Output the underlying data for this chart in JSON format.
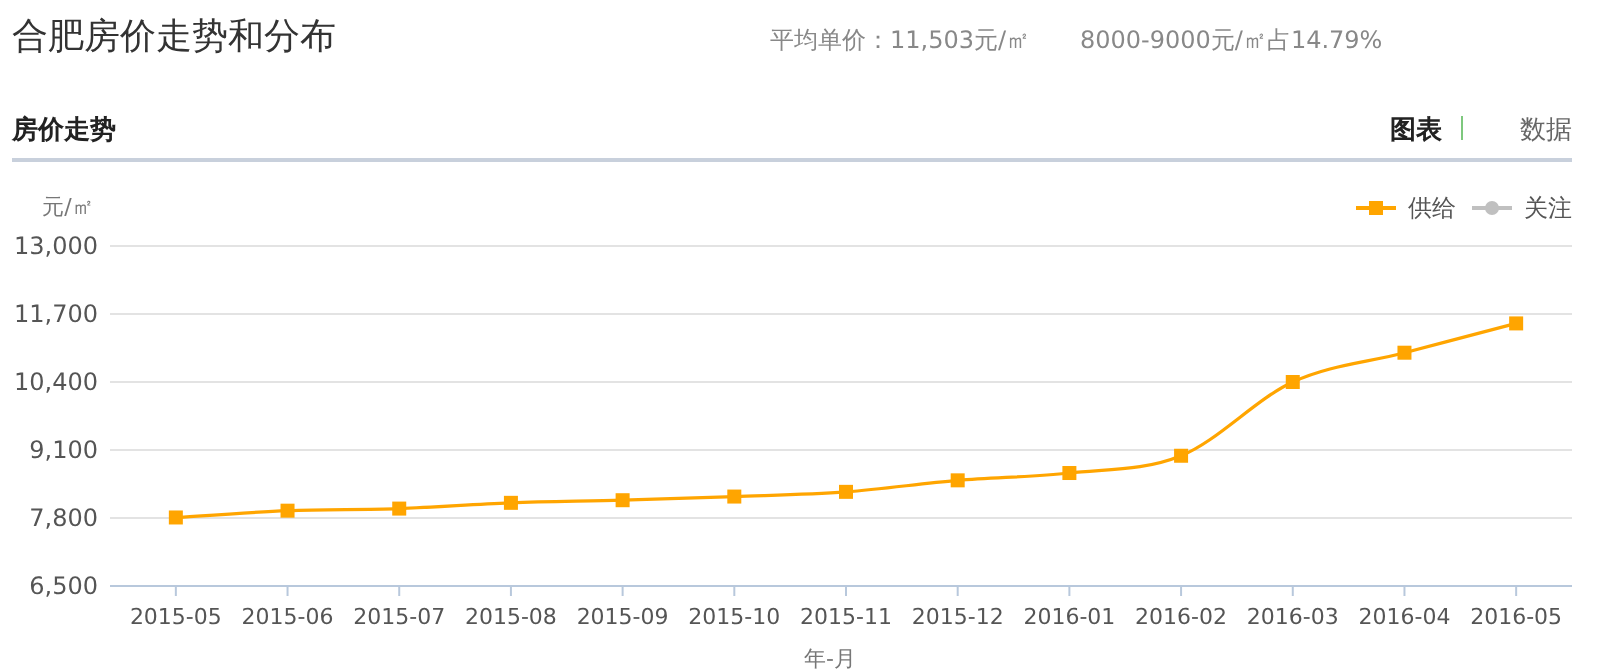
{
  "chart_data": {
    "type": "line",
    "title": "合肥房价走势和分布",
    "subtitle": "房价走势",
    "annotations": [
      "平均单价：11,503元/㎡",
      "8000-9000元/㎡占14.79%",
      "图表",
      "数据"
    ],
    "ylabel": "元/㎡",
    "xlabel": "年-月",
    "categories": [
      "2015-05",
      "2015-06",
      "2015-07",
      "2015-08",
      "2015-09",
      "2015-10",
      "2015-11",
      "2015-12",
      "2016-01",
      "2016-02",
      "2016-03",
      "2016-04",
      "2016-05"
    ],
    "series": [
      {
        "name": "供给",
        "color": "#ffa500",
        "marker": "square",
        "values": [
          7810,
          7940,
          7980,
          8090,
          8140,
          8210,
          8300,
          8520,
          8660,
          8990,
          10400,
          10960,
          11520
        ]
      },
      {
        "name": "关注",
        "color": "#c0c0c0",
        "marker": "circle",
        "values": [
          null,
          null,
          null,
          null,
          null,
          null,
          null,
          null,
          null,
          null,
          null,
          null,
          null
        ]
      }
    ],
    "ylim": [
      6500,
      13000
    ],
    "yticks": [
      {
        "value": 6500,
        "label": "6,500"
      },
      {
        "value": 7800,
        "label": "7,800"
      },
      {
        "value": 9100,
        "label": "9,100"
      },
      {
        "value": 10400,
        "label": "10,400"
      },
      {
        "value": 11700,
        "label": "11,700"
      },
      {
        "value": 13000,
        "label": "13,000"
      }
    ],
    "grid": "y",
    "legend": "top right"
  }
}
